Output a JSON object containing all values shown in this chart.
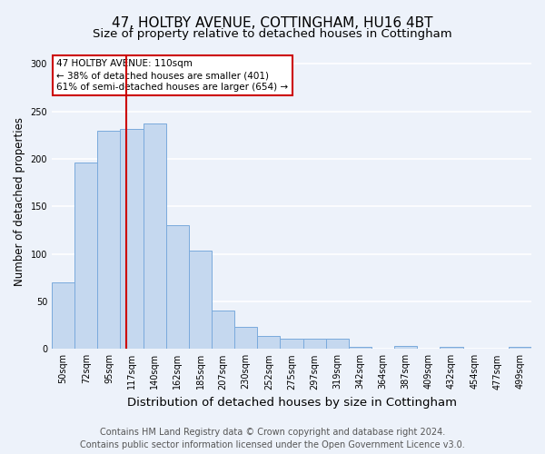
{
  "title": "47, HOLTBY AVENUE, COTTINGHAM, HU16 4BT",
  "subtitle": "Size of property relative to detached houses in Cottingham",
  "xlabel": "Distribution of detached houses by size in Cottingham",
  "ylabel": "Number of detached properties",
  "bar_labels": [
    "50sqm",
    "72sqm",
    "95sqm",
    "117sqm",
    "140sqm",
    "162sqm",
    "185sqm",
    "207sqm",
    "230sqm",
    "252sqm",
    "275sqm",
    "297sqm",
    "319sqm",
    "342sqm",
    "364sqm",
    "387sqm",
    "409sqm",
    "432sqm",
    "454sqm",
    "477sqm",
    "499sqm"
  ],
  "bar_values": [
    70,
    196,
    230,
    232,
    237,
    130,
    104,
    40,
    23,
    14,
    11,
    11,
    11,
    2,
    0,
    3,
    0,
    2,
    0,
    0,
    2
  ],
  "bar_color": "#c5d8ef",
  "bar_edge_color": "#7aaadc",
  "annotation_title": "47 HOLTBY AVENUE: 110sqm",
  "annotation_line1": "← 38% of detached houses are smaller (401)",
  "annotation_line2": "61% of semi-detached houses are larger (654) →",
  "annotation_box_facecolor": "#ffffff",
  "annotation_box_edgecolor": "#cc0000",
  "vline_color": "#cc0000",
  "vline_x_index": 2.75,
  "ylim": [
    0,
    310
  ],
  "yticks": [
    0,
    50,
    100,
    150,
    200,
    250,
    300
  ],
  "footnote1": "Contains HM Land Registry data © Crown copyright and database right 2024.",
  "footnote2": "Contains public sector information licensed under the Open Government Licence v3.0.",
  "bg_color": "#edf2fa",
  "grid_color": "#ffffff",
  "title_fontsize": 11,
  "subtitle_fontsize": 9.5,
  "xlabel_fontsize": 9.5,
  "ylabel_fontsize": 8.5,
  "tick_fontsize": 7,
  "footnote_fontsize": 7,
  "annotation_fontsize": 7.5
}
